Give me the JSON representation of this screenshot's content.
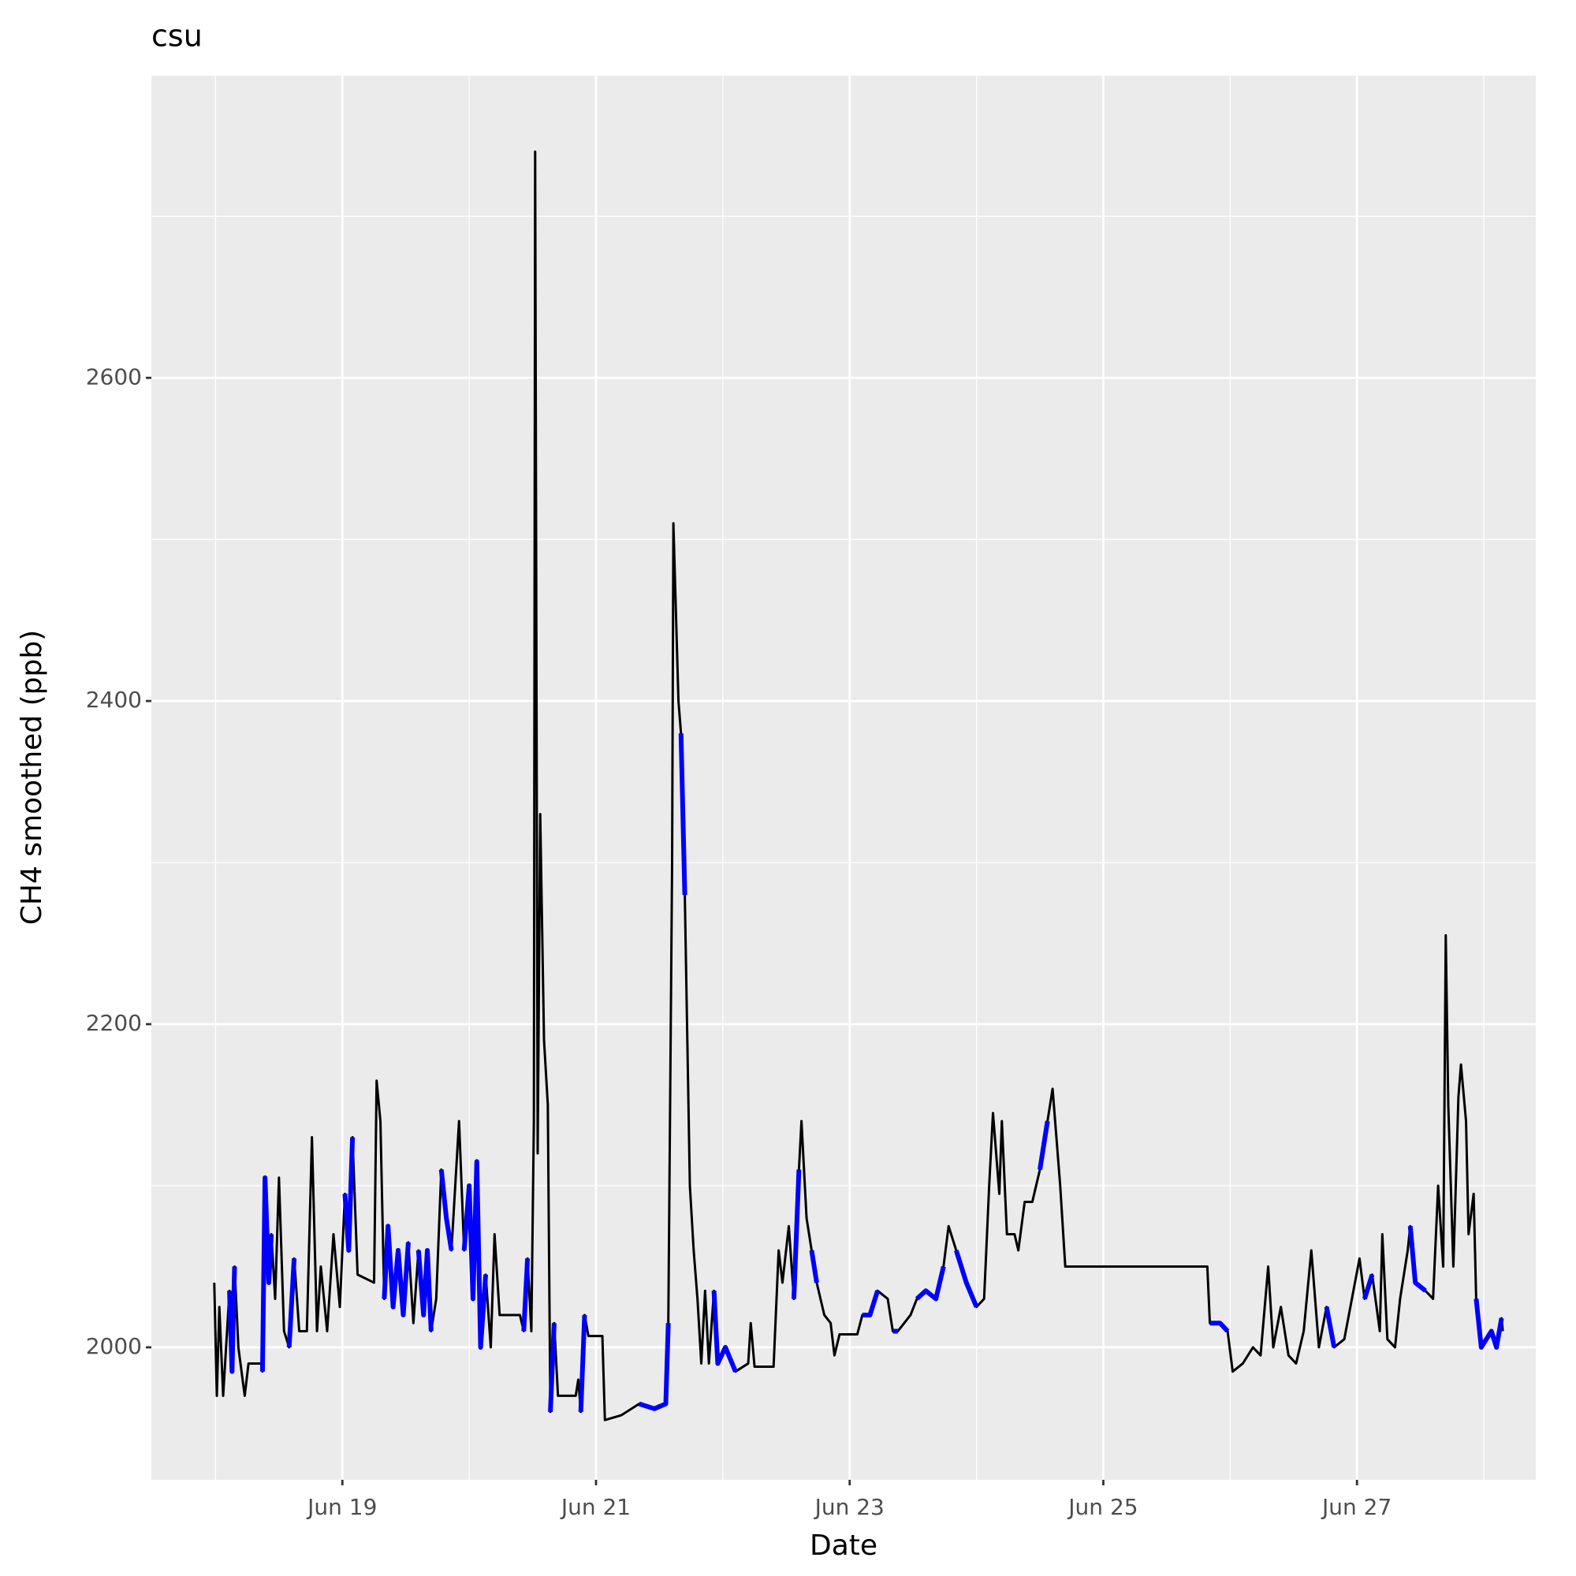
{
  "chart_data": {
    "type": "line",
    "title": "csu",
    "x_label": "Date",
    "y_label": "CH4 smoothed (ppb)",
    "x": [
      17.99,
      18.01,
      18.03,
      18.06,
      18.11,
      18.13,
      18.15,
      18.18,
      18.23,
      18.26,
      18.36,
      18.37,
      18.39,
      18.42,
      18.44,
      18.47,
      18.5,
      18.54,
      18.58,
      18.62,
      18.66,
      18.72,
      18.76,
      18.8,
      18.83,
      18.88,
      18.93,
      18.98,
      19.02,
      19.05,
      19.08,
      19.12,
      19.25,
      19.27,
      19.3,
      19.33,
      19.36,
      19.4,
      19.44,
      19.48,
      19.52,
      19.56,
      19.6,
      19.64,
      19.67,
      19.7,
      19.74,
      19.78,
      19.82,
      19.86,
      19.92,
      19.96,
      20.0,
      20.03,
      20.06,
      20.09,
      20.13,
      20.17,
      20.2,
      20.24,
      20.4,
      20.43,
      20.46,
      20.49,
      20.51,
      20.52,
      20.54,
      20.56,
      20.59,
      20.62,
      20.64,
      20.67,
      20.7,
      20.84,
      20.86,
      20.88,
      20.91,
      20.94,
      21.05,
      21.07,
      21.2,
      21.34,
      21.46,
      21.55,
      21.57,
      21.6,
      21.61,
      21.65,
      21.67,
      21.7,
      21.74,
      21.77,
      21.8,
      21.83,
      21.86,
      21.89,
      21.93,
      21.96,
      22.02,
      22.1,
      22.2,
      22.22,
      22.25,
      22.4,
      22.44,
      22.47,
      22.52,
      22.56,
      22.6,
      22.62,
      22.66,
      22.7,
      22.74,
      22.8,
      22.85,
      22.88,
      22.92,
      23.06,
      23.1,
      23.16,
      23.22,
      23.3,
      23.34,
      23.38,
      23.48,
      23.53,
      23.6,
      23.68,
      23.74,
      23.78,
      23.84,
      23.92,
      24.0,
      24.06,
      24.1,
      24.13,
      24.18,
      24.2,
      24.24,
      24.3,
      24.33,
      24.38,
      24.44,
      24.5,
      24.56,
      24.6,
      24.66,
      24.7,
      25.82,
      25.84,
      25.92,
      25.98,
      26.02,
      26.1,
      26.18,
      26.24,
      26.3,
      26.34,
      26.4,
      26.46,
      26.52,
      26.58,
      26.64,
      26.7,
      26.76,
      26.82,
      26.9,
      26.96,
      27.02,
      27.06,
      27.12,
      27.18,
      27.2,
      27.24,
      27.3,
      27.34,
      27.4,
      27.42,
      27.46,
      27.54,
      27.6,
      27.64,
      27.68,
      27.7,
      27.72,
      27.76,
      27.8,
      27.82,
      27.86,
      27.88,
      27.92,
      27.94,
      27.98,
      28.06,
      28.1,
      28.14,
      28.15
    ],
    "series": [
      {
        "color": "#000000",
        "values": [
          2040,
          1970,
          2025,
          1970,
          2035,
          1985,
          2050,
          2000,
          1970,
          1990,
          1990,
          1985,
          2105,
          2040,
          2070,
          2030,
          2105,
          2010,
          2000,
          2055,
          2010,
          2010,
          2130,
          2010,
          2050,
          2010,
          2070,
          2025,
          2095,
          2060,
          2130,
          2045,
          2040,
          2165,
          2140,
          2030,
          2075,
          2025,
          2060,
          2020,
          2065,
          2015,
          2060,
          2020,
          2060,
          2010,
          2030,
          2110,
          2080,
          2060,
          2140,
          2060,
          2100,
          2030,
          2115,
          2000,
          2045,
          2000,
          2070,
          2020,
          2020,
          2010,
          2055,
          2010,
          2140,
          2740,
          2120,
          2330,
          2190,
          2150,
          1960,
          2015,
          1970,
          1970,
          1980,
          1960,
          2020,
          2007,
          2007,
          1955,
          1958,
          1965,
          1962,
          1965,
          2015,
          2300,
          2510,
          2400,
          2380,
          2280,
          2100,
          2060,
          2030,
          1990,
          2035,
          1990,
          2035,
          1990,
          2000,
          1985,
          1990,
          2015,
          1988,
          1988,
          2060,
          2040,
          2075,
          2030,
          2110,
          2140,
          2080,
          2060,
          2040,
          2020,
          2015,
          1995,
          2008,
          2008,
          2020,
          2020,
          2035,
          2030,
          2010,
          2010,
          2020,
          2030,
          2035,
          2030,
          2050,
          2075,
          2060,
          2040,
          2025,
          2030,
          2100,
          2145,
          2095,
          2140,
          2070,
          2070,
          2060,
          2090,
          2090,
          2110,
          2140,
          2160,
          2100,
          2050,
          2050,
          2015,
          2015,
          2010,
          1985,
          1990,
          2000,
          1995,
          2050,
          2000,
          2025,
          1995,
          1990,
          2010,
          2060,
          2000,
          2025,
          2000,
          2005,
          2030,
          2055,
          2030,
          2045,
          2010,
          2070,
          2005,
          2000,
          2030,
          2060,
          2075,
          2040,
          2035,
          2030,
          2100,
          2050,
          2255,
          2150,
          2050,
          2155,
          2175,
          2140,
          2070,
          2095,
          2030,
          2000,
          2010,
          2000,
          2018,
          2010
        ]
      },
      {
        "color": "#0000ff",
        "values": [
          2040,
          null,
          2025,
          null,
          2035,
          1985,
          2050,
          null,
          null,
          null,
          null,
          1985,
          2105,
          2040,
          2070,
          null,
          2105,
          null,
          2000,
          2055,
          null,
          null,
          2130,
          null,
          2050,
          null,
          2070,
          null,
          2095,
          2060,
          2130,
          null,
          null,
          2165,
          null,
          2030,
          2075,
          2025,
          2060,
          2020,
          2065,
          null,
          2060,
          2020,
          2060,
          2010,
          null,
          2110,
          2080,
          2060,
          null,
          2060,
          2100,
          2030,
          2115,
          2000,
          2045,
          null,
          2070,
          null,
          null,
          2010,
          2055,
          null,
          2140,
          null,
          null,
          null,
          2190,
          null,
          1960,
          2015,
          null,
          null,
          null,
          1960,
          2020,
          null,
          null,
          1955,
          null,
          1965,
          1962,
          1965,
          2015,
          null,
          null,
          null,
          2380,
          2280,
          null,
          2060,
          null,
          null,
          2035,
          null,
          2035,
          1990,
          2000,
          1985,
          null,
          2015,
          null,
          null,
          2060,
          null,
          null,
          2030,
          2110,
          null,
          null,
          2060,
          2040,
          null,
          2015,
          null,
          null,
          null,
          2020,
          2020,
          2035,
          null,
          2010,
          2010,
          null,
          2030,
          2035,
          2030,
          2050,
          null,
          2060,
          2040,
          2025,
          null,
          2100,
          null,
          2095,
          null,
          null,
          null,
          2060,
          null,
          null,
          2110,
          2140,
          null,
          2100,
          null,
          null,
          2015,
          2015,
          2010,
          null,
          1990,
          null,
          null,
          2050,
          null,
          null,
          null,
          1990,
          null,
          2060,
          null,
          2025,
          2000,
          null,
          null,
          null,
          2030,
          2045,
          null,
          null,
          2005,
          null,
          2030,
          null,
          2075,
          2040,
          2035,
          null,
          null,
          2050,
          null,
          2150,
          null,
          2155,
          null,
          null,
          2070,
          null,
          2030,
          2000,
          2010,
          2000,
          2018,
          null
        ]
      }
    ],
    "xlim": [
      17.494,
      28.41
    ],
    "xticks": [
      {
        "value": 19,
        "label": "Jun 19"
      },
      {
        "value": 21,
        "label": "Jun 21"
      },
      {
        "value": 23,
        "label": "Jun 23"
      },
      {
        "value": 25,
        "label": "Jun 25"
      },
      {
        "value": 27,
        "label": "Jun 27"
      }
    ],
    "x_minor_ticks": [
      18,
      20,
      22,
      24,
      26,
      28
    ],
    "ylim": [
      1918,
      2787
    ],
    "yticks": [
      2000,
      2200,
      2400,
      2600
    ],
    "y_minor_ticks": [
      2100,
      2300,
      2500,
      2700
    ],
    "grid": true
  }
}
